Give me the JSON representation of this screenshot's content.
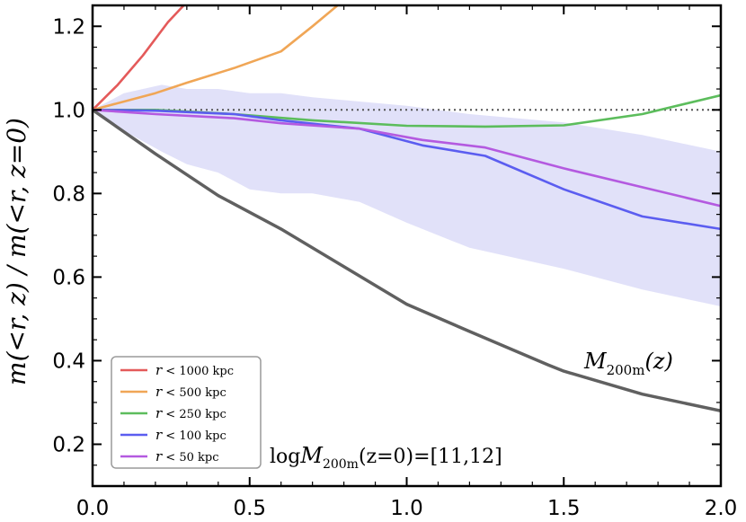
{
  "chart_data": {
    "type": "line",
    "xlabel": "",
    "ylabel": "m(<r, z) / m(<r, z=0)",
    "xlim": [
      0.0,
      2.0
    ],
    "ylim": [
      0.1,
      1.25
    ],
    "x_ticks": [
      "0.0",
      "0.5",
      "1.0",
      "1.5",
      "2.0"
    ],
    "y_ticks": [
      "0.2",
      "0.4",
      "0.6",
      "0.8",
      "1.0",
      "1.2"
    ],
    "x_tick_values": [
      0.0,
      0.5,
      1.0,
      1.5,
      2.0
    ],
    "y_tick_values": [
      0.2,
      0.4,
      0.6,
      0.8,
      1.0,
      1.2
    ],
    "reference_line": {
      "y": 1.0,
      "style": "dotted",
      "color": "#555555"
    },
    "band": {
      "color": "#c8c8f4",
      "x": [
        0.0,
        0.1,
        0.22,
        0.3,
        0.4,
        0.5,
        0.6,
        0.7,
        0.85,
        1.0,
        1.2,
        1.5,
        1.75,
        2.0
      ],
      "upper": [
        1.0,
        1.04,
        1.06,
        1.05,
        1.05,
        1.04,
        1.04,
        1.03,
        1.02,
        1.01,
        0.99,
        0.97,
        0.94,
        0.9
      ],
      "lower": [
        1.0,
        0.95,
        0.9,
        0.87,
        0.85,
        0.81,
        0.8,
        0.8,
        0.78,
        0.73,
        0.67,
        0.62,
        0.57,
        0.53
      ]
    },
    "series": [
      {
        "name": "r < 1000 kpc",
        "label_var": "r",
        "label_rest": " < 1000 kpc",
        "color": "#e45a5a",
        "x": [
          0.0,
          0.08,
          0.16,
          0.24,
          0.29
        ],
        "values": [
          1.0,
          1.06,
          1.13,
          1.21,
          1.25
        ]
      },
      {
        "name": "r < 500 kpc",
        "label_var": "r",
        "label_rest": " < 500 kpc",
        "color": "#f0a656",
        "x": [
          0.0,
          0.2,
          0.3,
          0.45,
          0.6,
          0.7,
          0.78
        ],
        "values": [
          1.0,
          1.04,
          1.065,
          1.1,
          1.14,
          1.2,
          1.25
        ]
      },
      {
        "name": "r < 250 kpc",
        "label_var": "r",
        "label_rest": " < 250 kpc",
        "color": "#5cbd5c",
        "x": [
          0.0,
          0.2,
          0.45,
          0.7,
          1.0,
          1.25,
          1.5,
          1.75,
          2.0
        ],
        "values": [
          1.0,
          1.0,
          0.99,
          0.975,
          0.962,
          0.96,
          0.963,
          0.99,
          1.035
        ]
      },
      {
        "name": "r < 100 kpc",
        "label_var": "r",
        "label_rest": " < 100 kpc",
        "color": "#5b5df0",
        "x": [
          0.0,
          0.2,
          0.45,
          0.6,
          0.85,
          1.05,
          1.25,
          1.5,
          1.75,
          2.0
        ],
        "values": [
          1.0,
          0.998,
          0.99,
          0.975,
          0.955,
          0.915,
          0.89,
          0.81,
          0.745,
          0.715
        ]
      },
      {
        "name": "r < 50 kpc",
        "label_var": "r",
        "label_rest": " < 50 kpc",
        "color": "#b45ae0",
        "x": [
          0.0,
          0.2,
          0.45,
          0.6,
          0.85,
          1.05,
          1.25,
          1.5,
          1.75,
          2.0
        ],
        "values": [
          1.0,
          0.99,
          0.98,
          0.968,
          0.955,
          0.928,
          0.91,
          0.86,
          0.815,
          0.77
        ]
      },
      {
        "name": "M200m(z)",
        "color": "#606060",
        "x": [
          0.0,
          0.2,
          0.4,
          0.6,
          0.8,
          1.0,
          1.2,
          1.45,
          1.5,
          1.75,
          2.0
        ],
        "values": [
          1.0,
          0.895,
          0.795,
          0.715,
          0.625,
          0.535,
          0.47,
          0.39,
          0.375,
          0.32,
          0.28
        ]
      }
    ],
    "annotations": {
      "mass_curve_label": {
        "main": "M",
        "sub": "200m",
        "tail": "(z)"
      },
      "mass_range_label": {
        "prefix": "log",
        "main": "M",
        "sub": "200m",
        "tail": "(z=0)=[11,12]"
      }
    },
    "legend_position": "lower-left"
  }
}
